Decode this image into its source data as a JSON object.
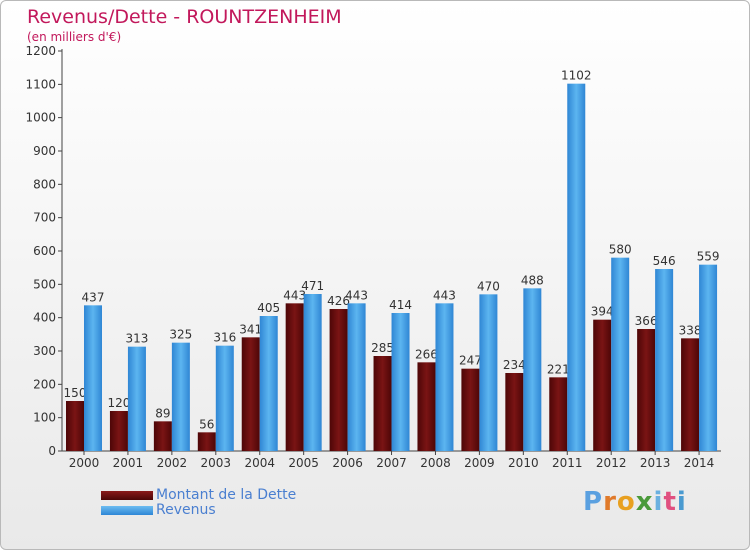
{
  "title": "Revenus/Dette - ROUNTZENHEIM",
  "subtitle": "(en milliers d'€)",
  "colors": {
    "debt": "#6e0f10",
    "revenue": "#3f9fe6",
    "title": "#c2185b",
    "legend_text": "#4a7fd0"
  },
  "logo": {
    "text": "Proxiti",
    "letters": [
      "P",
      "r",
      "o",
      "x",
      "i",
      "t",
      "i"
    ],
    "letter_colors": [
      "#5aa0e0",
      "#e07a2a",
      "#e8a020",
      "#4a9a3a",
      "#6ab0e0",
      "#e05080",
      "#4a9ad0"
    ]
  },
  "chart_data": {
    "type": "bar",
    "title": "Revenus/Dette - ROUNTZENHEIM",
    "subtitle": "(en milliers d'€)",
    "categories": [
      "2000",
      "2001",
      "2002",
      "2003",
      "2004",
      "2005",
      "2006",
      "2007",
      "2008",
      "2009",
      "2010",
      "2011",
      "2012",
      "2013",
      "2014"
    ],
    "series": [
      {
        "name": "Montant de la Dette",
        "values": [
          150,
          120,
          89,
          56,
          341,
          443,
          426,
          285,
          266,
          247,
          234,
          221,
          394,
          366,
          338
        ]
      },
      {
        "name": "Revenus",
        "values": [
          437,
          313,
          325,
          316,
          405,
          471,
          443,
          414,
          443,
          470,
          488,
          1102,
          580,
          546,
          559
        ]
      }
    ],
    "ylim": [
      0,
      1200
    ],
    "yticks": [
      0,
      100,
      200,
      300,
      400,
      500,
      600,
      700,
      800,
      900,
      1000,
      1100,
      1200
    ],
    "grid": false,
    "legend": "bottom-left"
  }
}
